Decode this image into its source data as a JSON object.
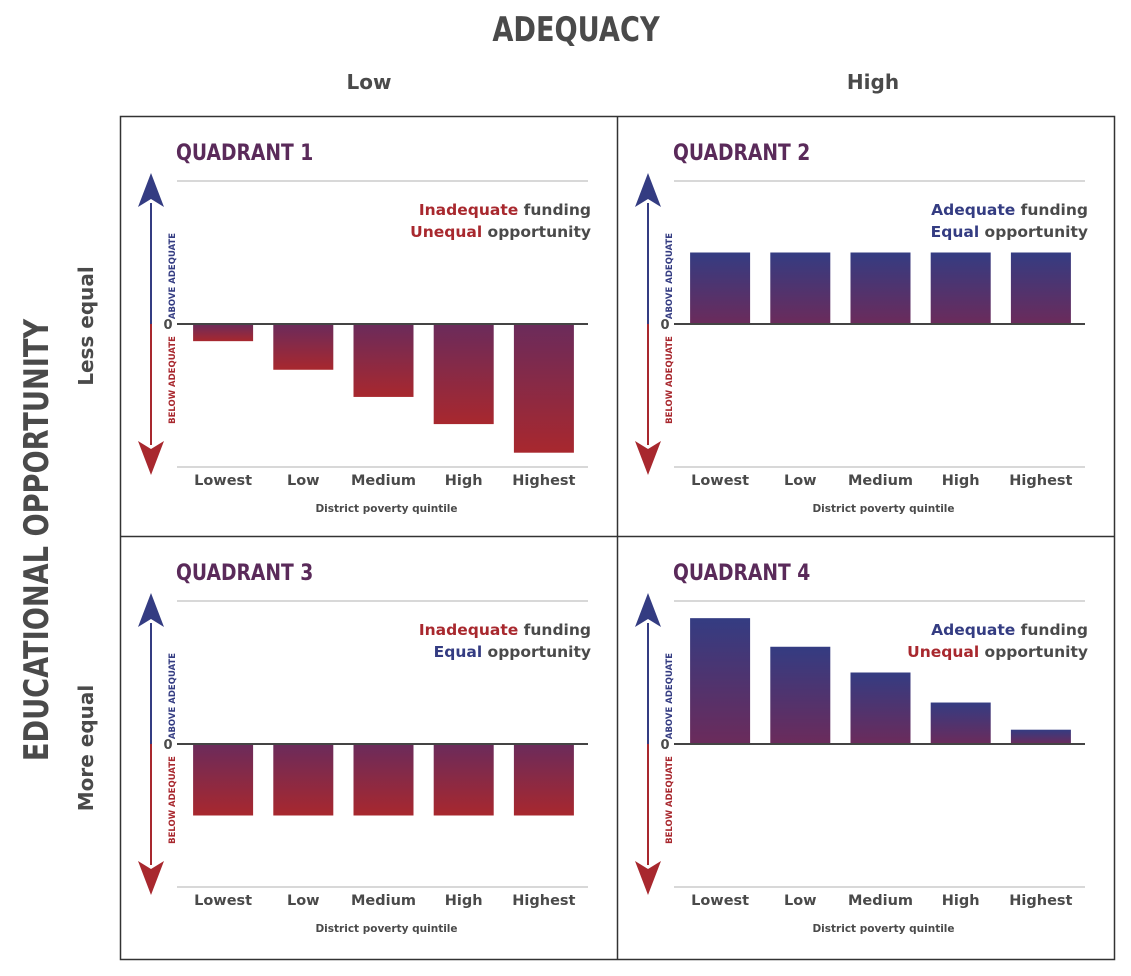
{
  "header": {
    "title": "ADEQUACY",
    "columns": [
      "Low",
      "High"
    ]
  },
  "y_axis": {
    "title": "EDUCATIONAL OPPORTUNITY",
    "rows": [
      "Less equal",
      "More equal"
    ]
  },
  "colors": {
    "above": "#343c82",
    "below": "#a8282e",
    "mid": "#6b2b5b",
    "title": "#5a2a5a",
    "text": "#4a4a4a",
    "grid": "#cccccc"
  },
  "chart_data": [
    {
      "type": "bar",
      "title": "QUADRANT 1",
      "legend": [
        {
          "keyword": "Inadequate",
          "keyword_color": "red",
          "rest": " funding"
        },
        {
          "keyword": "Unequal",
          "keyword_color": "red",
          "rest": " opportunity"
        }
      ],
      "categories": [
        "Lowest",
        "Low",
        "Medium",
        "High",
        "Highest"
      ],
      "values": [
        -0.6,
        -1.6,
        -2.55,
        -3.5,
        -4.5
      ],
      "xlabel": "District poverty quintile",
      "zero_label": "0",
      "above_label": "ABOVE ADEQUATE",
      "below_label": "BELOW ADEQUATE",
      "ylim": [
        -5,
        5
      ]
    },
    {
      "type": "bar",
      "title": "QUADRANT 2",
      "legend": [
        {
          "keyword": "Adequate",
          "keyword_color": "blue",
          "rest": " funding"
        },
        {
          "keyword": "Equal",
          "keyword_color": "blue",
          "rest": " opportunity"
        }
      ],
      "categories": [
        "Lowest",
        "Low",
        "Medium",
        "High",
        "Highest"
      ],
      "values": [
        2.5,
        2.5,
        2.5,
        2.5,
        2.5
      ],
      "xlabel": "District poverty quintile",
      "zero_label": "0",
      "above_label": "ABOVE ADEQUATE",
      "below_label": "BELOW ADEQUATE",
      "ylim": [
        -5,
        5
      ]
    },
    {
      "type": "bar",
      "title": "QUADRANT 3",
      "legend": [
        {
          "keyword": "Inadequate",
          "keyword_color": "red",
          "rest": " funding"
        },
        {
          "keyword": "Equal",
          "keyword_color": "blue",
          "rest": " opportunity"
        }
      ],
      "categories": [
        "Lowest",
        "Low",
        "Medium",
        "High",
        "Highest"
      ],
      "values": [
        -2.5,
        -2.5,
        -2.5,
        -2.5,
        -2.5
      ],
      "xlabel": "District poverty quintile",
      "zero_label": "0",
      "above_label": "ABOVE ADEQUATE",
      "below_label": "BELOW ADEQUATE",
      "ylim": [
        -5,
        5
      ]
    },
    {
      "type": "bar",
      "title": "QUADRANT 4",
      "legend": [
        {
          "keyword": "Adequate",
          "keyword_color": "blue",
          "rest": " funding"
        },
        {
          "keyword": "Unequal",
          "keyword_color": "red",
          "rest": " opportunity"
        }
      ],
      "categories": [
        "Lowest",
        "Low",
        "Medium",
        "High",
        "Highest"
      ],
      "values": [
        4.4,
        3.4,
        2.5,
        1.45,
        0.5
      ],
      "xlabel": "District poverty quintile",
      "zero_label": "0",
      "above_label": "ABOVE ADEQUATE",
      "below_label": "BELOW ADEQUATE",
      "ylim": [
        -5,
        5
      ]
    }
  ]
}
